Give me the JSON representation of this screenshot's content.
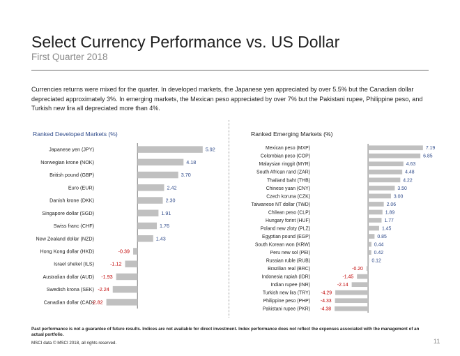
{
  "header": {
    "title": "Select Currency Performance vs. US Dollar",
    "subtitle": "First Quarter 2018"
  },
  "intro": "Currencies returns were mixed for the quarter. In developed markets, the Japanese yen appreciated by over 5.5% but the Canadian dollar depreciated approximately 3%. In emerging markets, the Mexican peso appreciated by over 7% but the Pakistani rupee, Philippine peso, and Turkish new lira all depreciated more than 4%.",
  "colors": {
    "bar": "#c0c0c0",
    "positive_label": "#2e4a8a",
    "negative_label": "#c00000",
    "axis": "#555555"
  },
  "chart_data": [
    {
      "type": "bar",
      "orientation": "horizontal",
      "title": "Ranked Developed Markets (%)",
      "categories": [
        "Japanese yen (JPY)",
        "Norwegian krone (NOK)",
        "British pound (GBP)",
        "Euro (EUR)",
        "Danish krone (DKK)",
        "Singapore dollar (SGD)",
        "Swiss franc (CHF)",
        "New Zealand dollar (NZD)",
        "Hong Kong dollar (HKD)",
        "Israel shekel (ILS)",
        "Australian dollar (AUD)",
        "Swedish krona (SEK)",
        "Canadian dollar (CAD)"
      ],
      "values": [
        5.92,
        4.18,
        3.7,
        2.42,
        2.3,
        1.91,
        1.76,
        1.43,
        -0.39,
        -1.12,
        -1.93,
        -2.24,
        -2.82
      ],
      "value_labels": [
        "5.92",
        "4.18",
        "3.70",
        "2.42",
        "2.30",
        "1.91",
        "1.76",
        "1.43",
        "-0.39",
        "-1.12",
        "-1.93",
        "-2.24",
        "-2.82"
      ],
      "xlim": [
        -3.3,
        6.5
      ],
      "grid": false,
      "legend": "none"
    },
    {
      "type": "bar",
      "orientation": "horizontal",
      "title": "Ranked Emerging Markets (%)",
      "categories": [
        "Mexican peso (MXP)",
        "Colombian peso (COP)",
        "Malaysian ringgit (MYR)",
        "South African rand (ZAR)",
        "Thailand baht (THB)",
        "Chinese yuan (CNY)",
        "Czech koruna (CZK)",
        "Taiwanese NT dollar (TWD)",
        "Chilean peso (CLP)",
        "Hungary forint (HUF)",
        "Poland new zloty (PLZ)",
        "Egyptian pound (EGP)",
        "South Korean won (KRW)",
        "Peru new sol (PEI)",
        "Russian ruble (RUB)",
        "Brazilian real (BRC)",
        "Indonesia rupiah (IDR)",
        "Indian rupee (INR)",
        "Turkish new lira (TRY)",
        "Philippine peso (PHP)",
        "Pakistani rupee (PKR)"
      ],
      "values": [
        7.19,
        6.85,
        4.63,
        4.48,
        4.22,
        3.5,
        3.0,
        2.06,
        1.89,
        1.77,
        1.45,
        0.85,
        0.44,
        0.42,
        0.12,
        -0.2,
        -1.45,
        -2.14,
        -4.29,
        -4.33,
        -4.38
      ],
      "value_labels": [
        "7.19",
        "6.85",
        "4.63",
        "4.48",
        "4.22",
        "3.50",
        "3.00",
        "2.06",
        "1.89",
        "1.77",
        "1.45",
        "0.85",
        "0.44",
        "0.42",
        "0.12",
        "-0.20",
        "-1.45",
        "-2.14",
        "-4.29",
        "-4.33",
        "-4.38"
      ],
      "xlim": [
        -5.3,
        8.3
      ],
      "grid": false,
      "legend": "none"
    }
  ],
  "footer": {
    "disclaimer": "Past performance is not a guarantee of future results. Indices are not available for direct investment. Index performance does not reflect the expenses associated with the management of an actual portfolio.",
    "source": "MSCI data © MSCI 2018, all rights reserved.",
    "page_number": "11"
  }
}
